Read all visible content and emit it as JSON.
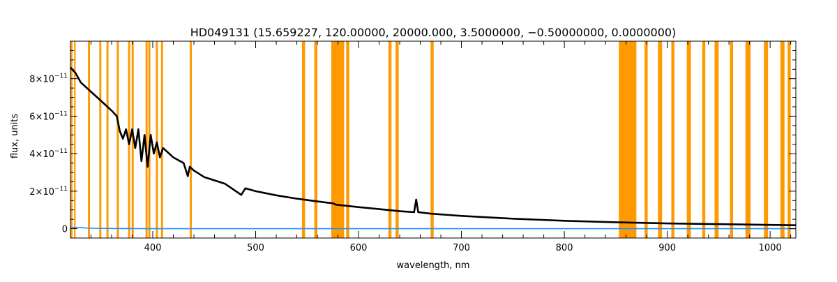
{
  "chart_data": {
    "type": "line",
    "title": "HD049131   (15.659227, 120.00000, 20000.000, 3.5000000, −0.50000000, 0.0000000)",
    "xlabel": "wavelength, nm",
    "ylabel": "flux, units",
    "xlim": [
      320,
      1025
    ],
    "ylim": [
      -5e-12,
      1e-10
    ],
    "x_ticks": [
      400,
      500,
      600,
      700,
      800,
      900,
      1000
    ],
    "x_tick_labels": [
      "400",
      "500",
      "600",
      "700",
      "800",
      "900",
      "1000"
    ],
    "y_ticks": [
      0,
      2e-11,
      4e-11,
      6e-11,
      8e-11
    ],
    "y_tick_labels": [
      {
        "mant": "0",
        "exp": ""
      },
      {
        "mant": "2×10",
        "exp": "−11"
      },
      {
        "mant": "4×10",
        "exp": "−11"
      },
      {
        "mant": "6×10",
        "exp": "−11"
      },
      {
        "mant": "8×10",
        "exp": "−11"
      }
    ],
    "grid": false,
    "colors": {
      "flux": "#000000",
      "error": "#1f8fff",
      "mask": "#ff9900"
    },
    "series": [
      {
        "color": "#000000",
        "x": [
          320,
          325,
          330,
          340,
          350,
          360,
          365,
          368,
          371,
          374,
          377,
          380,
          383,
          386,
          389,
          392,
          395,
          398,
          401,
          404,
          407,
          410,
          420,
          430,
          434,
          436,
          440,
          450,
          470,
          486,
          490,
          500,
          520,
          540,
          560,
          575,
          578,
          600,
          620,
          640,
          654,
          656,
          658,
          670,
          700,
          750,
          800,
          850,
          900,
          950,
          1000,
          1025
        ],
        "y": [
          8.6e-11,
          8.3e-11,
          7.8e-11,
          7.3e-11,
          6.8e-11,
          6.3e-11,
          6e-11,
          5.2e-11,
          4.8e-11,
          5.3e-11,
          4.5e-11,
          5.3e-11,
          4.3e-11,
          5.3e-11,
          3.6e-11,
          5e-11,
          3.3e-11,
          5e-11,
          4e-11,
          4.6e-11,
          3.8e-11,
          4.3e-11,
          3.8e-11,
          3.5e-11,
          2.8e-11,
          3.3e-11,
          3.1e-11,
          2.75e-11,
          2.4e-11,
          1.8e-11,
          2.15e-11,
          2e-11,
          1.78e-11,
          1.6e-11,
          1.45e-11,
          1.35e-11,
          1.28e-11,
          1.15e-11,
          1.04e-11,
          9.3e-12,
          8.8e-12,
          1.55e-11,
          8.8e-12,
          8e-12,
          6.8e-12,
          5.3e-12,
          4.2e-12,
          3.4e-12,
          2.8e-12,
          2.4e-12,
          2e-12,
          1.8e-12
        ]
      },
      {
        "color": "#1f8fff",
        "x": [
          320,
          330,
          340,
          360,
          400,
          500,
          600,
          700,
          800,
          900,
          1000,
          1025
        ],
        "y": [
          8e-13,
          5e-13,
          2e-13,
          1e-13,
          0.0,
          0.0,
          0.0,
          0.0,
          0.0,
          0.0,
          0.0,
          0.0
        ]
      }
    ],
    "masked_regions": [
      [
        320.5,
        322
      ],
      [
        323.5,
        325
      ],
      [
        337,
        339
      ],
      [
        348,
        350
      ],
      [
        355,
        357
      ],
      [
        365,
        367
      ],
      [
        376,
        378
      ],
      [
        379.5,
        381.5
      ],
      [
        393,
        395
      ],
      [
        395.7,
        397.7
      ],
      [
        403,
        405
      ],
      [
        408,
        410
      ],
      [
        436,
        438
      ],
      [
        545,
        548
      ],
      [
        557,
        560
      ],
      [
        573.5,
        586
      ],
      [
        588,
        591
      ],
      [
        629,
        632
      ],
      [
        636,
        639
      ],
      [
        670,
        673
      ],
      [
        853,
        870
      ],
      [
        878,
        881
      ],
      [
        891,
        895
      ],
      [
        904,
        907
      ],
      [
        919,
        923
      ],
      [
        934,
        937
      ],
      [
        946,
        950
      ],
      [
        961,
        964
      ],
      [
        976,
        981
      ],
      [
        994,
        998
      ],
      [
        1010,
        1014
      ],
      [
        1017,
        1020
      ]
    ]
  }
}
